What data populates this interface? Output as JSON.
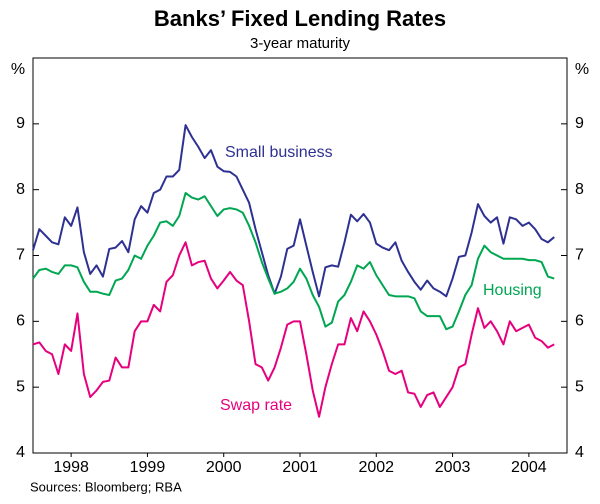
{
  "chart_data": {
    "type": "line",
    "title": "Banks’ Fixed Lending Rates",
    "subtitle": "3-year maturity",
    "y_label": "%",
    "y2_label": "%",
    "source": "Sources: Bloomberg; RBA",
    "annotations": [
      "Small business",
      "Housing",
      "Swap rate"
    ],
    "x": [
      1998,
      1998.083,
      1998.167,
      1998.25,
      1998.333,
      1998.417,
      1998.5,
      1998.583,
      1998.667,
      1998.75,
      1998.833,
      1998.917,
      1999,
      1999.083,
      1999.167,
      1999.25,
      1999.333,
      1999.417,
      1999.5,
      1999.583,
      1999.667,
      1999.75,
      1999.833,
      1999.917,
      2000,
      2000.083,
      2000.167,
      2000.25,
      2000.333,
      2000.417,
      2000.5,
      2000.583,
      2000.667,
      2000.75,
      2000.833,
      2000.917,
      2001,
      2001.083,
      2001.167,
      2001.25,
      2001.333,
      2001.417,
      2001.5,
      2001.583,
      2001.667,
      2001.75,
      2001.833,
      2001.917,
      2002,
      2002.083,
      2002.167,
      2002.25,
      2002.333,
      2002.417,
      2002.5,
      2002.583,
      2002.667,
      2002.75,
      2002.833,
      2002.917,
      2003,
      2003.083,
      2003.167,
      2003.25,
      2003.333,
      2003.417,
      2003.5,
      2003.583,
      2003.667,
      2003.75,
      2003.833,
      2003.917,
      2004,
      2004.083,
      2004.167,
      2004.25,
      2004.333,
      2004.417,
      2004.5,
      2004.583,
      2004.667,
      2004.75,
      2004.833
    ],
    "xlim": [
      1998,
      2005
    ],
    "xticks": [
      {
        "value": 1998.5,
        "label": "1998"
      },
      {
        "value": 1999.5,
        "label": "1999"
      },
      {
        "value": 2000.5,
        "label": "2000"
      },
      {
        "value": 2001.5,
        "label": "2001"
      },
      {
        "value": 2002.5,
        "label": "2002"
      },
      {
        "value": 2003.5,
        "label": "2003"
      },
      {
        "value": 2004.5,
        "label": "2004"
      }
    ],
    "ylim": [
      4,
      10
    ],
    "yticks": [
      4,
      5,
      6,
      7,
      8,
      9
    ],
    "y2lim": [
      4,
      10
    ],
    "y2ticks": [
      4,
      5,
      6,
      7,
      8,
      9
    ],
    "grid": false,
    "series": [
      {
        "name": "Small business",
        "color": "#2e3192",
        "values": [
          7.08,
          7.4,
          7.3,
          7.2,
          7.17,
          7.58,
          7.45,
          7.73,
          7.05,
          6.72,
          6.85,
          6.68,
          7.1,
          7.12,
          7.22,
          7.05,
          7.55,
          7.75,
          7.65,
          7.95,
          8.0,
          8.2,
          8.2,
          8.3,
          8.98,
          8.8,
          8.65,
          8.48,
          8.6,
          8.35,
          8.28,
          8.27,
          8.2,
          8.0,
          7.8,
          7.4,
          7.05,
          6.7,
          6.42,
          6.68,
          7.1,
          7.15,
          7.55,
          7.15,
          6.75,
          6.38,
          6.82,
          6.85,
          6.83,
          7.2,
          7.62,
          7.52,
          7.63,
          7.5,
          7.18,
          7.12,
          7.08,
          7.2,
          6.92,
          6.75,
          6.6,
          6.48,
          6.62,
          6.5,
          6.45,
          6.38,
          6.65,
          6.98,
          7.0,
          7.35,
          7.78,
          7.6,
          7.5,
          7.58,
          7.18,
          7.58,
          7.55,
          7.45,
          7.5,
          7.4,
          7.25,
          7.2,
          7.28
        ]
      },
      {
        "name": "Housing",
        "color": "#00a651",
        "values": [
          6.65,
          6.78,
          6.8,
          6.75,
          6.72,
          6.85,
          6.85,
          6.82,
          6.6,
          6.45,
          6.45,
          6.42,
          6.4,
          6.62,
          6.65,
          6.78,
          7.0,
          6.95,
          7.15,
          7.3,
          7.5,
          7.52,
          7.45,
          7.6,
          7.95,
          7.88,
          7.85,
          7.9,
          7.75,
          7.6,
          7.7,
          7.72,
          7.7,
          7.65,
          7.45,
          7.2,
          6.9,
          6.65,
          6.42,
          6.45,
          6.5,
          6.6,
          6.8,
          6.65,
          6.4,
          6.22,
          5.92,
          5.98,
          6.3,
          6.4,
          6.6,
          6.85,
          6.8,
          6.9,
          6.7,
          6.55,
          6.4,
          6.38,
          6.38,
          6.38,
          6.35,
          6.15,
          6.08,
          6.08,
          6.08,
          5.88,
          5.92,
          6.15,
          6.4,
          6.55,
          6.95,
          7.15,
          7.05,
          7.0,
          6.95,
          6.95,
          6.95,
          6.95,
          6.93,
          6.93,
          6.9,
          6.68,
          6.65
        ]
      },
      {
        "name": "Swap rate",
        "color": "#e6007e",
        "values": [
          5.65,
          5.68,
          5.55,
          5.5,
          5.2,
          5.65,
          5.55,
          6.12,
          5.2,
          4.85,
          4.95,
          5.08,
          5.1,
          5.45,
          5.3,
          5.3,
          5.85,
          6.0,
          6.0,
          6.25,
          6.15,
          6.6,
          6.7,
          7.0,
          7.2,
          6.85,
          6.9,
          6.92,
          6.65,
          6.5,
          6.62,
          6.75,
          6.62,
          6.55,
          6.0,
          5.35,
          5.3,
          5.1,
          5.3,
          5.6,
          5.95,
          6.0,
          6.0,
          5.5,
          4.95,
          4.55,
          5.0,
          5.35,
          5.65,
          5.65,
          6.05,
          5.85,
          6.15,
          6.0,
          5.8,
          5.55,
          5.25,
          5.2,
          5.25,
          4.92,
          4.9,
          4.7,
          4.88,
          4.92,
          4.7,
          4.85,
          5.0,
          5.3,
          5.35,
          5.8,
          6.2,
          5.9,
          6.0,
          5.85,
          5.65,
          6.0,
          5.85,
          5.9,
          5.95,
          5.75,
          5.7,
          5.6,
          5.65
        ]
      }
    ]
  }
}
